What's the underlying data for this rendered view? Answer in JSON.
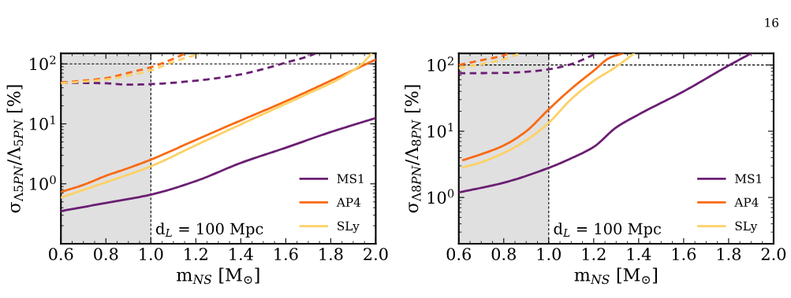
{
  "chart_data": [
    {
      "type": "line",
      "xlabel": "m$_{NS}$ [M$_{⊙}$]",
      "ylabel": "σ$_{Λ5PN}$/Λ$_{5PN}$ [%]",
      "log": "y",
      "xlim": [
        0.6,
        2.0
      ],
      "xticks": [
        {
          "value": 0.6,
          "label": "0.6"
        },
        {
          "value": 0.8,
          "label": "0.8"
        },
        {
          "value": 1.0,
          "label": "1.0"
        },
        {
          "value": 1.2,
          "label": "1.2"
        },
        {
          "value": 1.4,
          "label": "1.4"
        },
        {
          "value": 1.6,
          "label": "1.6"
        },
        {
          "value": 1.8,
          "label": "1.8"
        },
        {
          "value": 2.0,
          "label": "2.0"
        }
      ],
      "ylim": [
        0.1,
        150
      ],
      "yticks": [
        {
          "value": 1,
          "label": "10$^{0}$"
        },
        {
          "value": 10,
          "label": "10$^{1}$"
        },
        {
          "value": 100,
          "label": "10$^{2}$"
        }
      ],
      "legend": "bottom right",
      "grid": false,
      "series": [
        {
          "name": "MS1",
          "color": "#6b1f73",
          "x": [
            0.6,
            0.8,
            1.0,
            1.2,
            1.4,
            1.6,
            1.8,
            2.0
          ],
          "values": [
            0.35,
            0.48,
            0.66,
            1.11,
            2.23,
            4.0,
            7.3,
            12.5
          ]
        },
        {
          "name": "AP4",
          "color": "#f86a14",
          "x": [
            0.6,
            0.7,
            0.8,
            0.9,
            1.0,
            1.2,
            1.4,
            1.6,
            1.8,
            2.0
          ],
          "values": [
            0.73,
            0.96,
            1.36,
            1.83,
            2.53,
            5.4,
            11.4,
            23.8,
            52.5,
            118
          ]
        },
        {
          "name": "SLy",
          "color": "#fdd166",
          "x": [
            0.6,
            0.8,
            1.0,
            1.2,
            1.4,
            1.6,
            1.75,
            1.8,
            1.9,
            1.95,
            1.98
          ],
          "values": [
            0.59,
            1.06,
            1.96,
            4.4,
            9.8,
            21.6,
            39,
            47.5,
            78,
            110,
            148
          ]
        },
        {
          "color": "#6b1f73",
          "line_style": "dashed",
          "x": [
            0.6,
            0.8,
            0.9,
            1.0,
            1.2,
            1.4,
            1.5,
            1.6,
            1.7,
            1.73
          ],
          "values": [
            48.6,
            47.5,
            45,
            46,
            52.5,
            67,
            82,
            105,
            134,
            148
          ]
        },
        {
          "color": "#f86a14",
          "line_style": "dashed",
          "x": [
            0.6,
            0.7,
            0.8,
            0.9,
            1.0,
            1.1,
            1.15
          ],
          "values": [
            49,
            52.5,
            58,
            71,
            88,
            122,
            148
          ]
        },
        {
          "color": "#fdd166",
          "line_style": "dashed",
          "x": [
            0.6,
            0.8,
            0.9,
            1.0,
            1.1,
            1.2,
            1.22
          ],
          "values": [
            47.5,
            55,
            64,
            78,
            108,
            141,
            148
          ]
        }
      ],
      "bands": [
        {
          "axis": "x",
          "from": 0.6,
          "to": 1.0,
          "color": "#e0e0e0"
        }
      ],
      "ref_lines": [
        {
          "axis": "x",
          "value": 1.0,
          "line_style": "dashed"
        },
        {
          "axis": "y",
          "value": 100,
          "line_style": "dashed"
        }
      ],
      "annotations": [
        "d$_{L}$ = 100 Mpc"
      ]
    },
    {
      "type": "line",
      "xlabel": "m$_{NS}$ [M$_{⊙}$]",
      "ylabel": "σ$_{Λ8PN}$/Λ$_{8PN}$ [%]",
      "log": "y",
      "xlim": [
        0.6,
        2.0
      ],
      "xticks": [
        {
          "value": 0.6,
          "label": "0.6"
        },
        {
          "value": 0.8,
          "label": "0.8"
        },
        {
          "value": 1.0,
          "label": "1.0"
        },
        {
          "value": 1.2,
          "label": "1.2"
        },
        {
          "value": 1.4,
          "label": "1.4"
        },
        {
          "value": 1.6,
          "label": "1.6"
        },
        {
          "value": 1.8,
          "label": "1.8"
        },
        {
          "value": 2.0,
          "label": "2.0"
        }
      ],
      "ylim": [
        0.2,
        150
      ],
      "yticks": [
        {
          "value": 1,
          "label": "10$^{0}$"
        },
        {
          "value": 10,
          "label": "10$^{1}$"
        },
        {
          "value": 100,
          "label": "10$^{2}$"
        }
      ],
      "legend": "bottom right",
      "grid": false,
      "series": [
        {
          "name": "MS1",
          "color": "#6b1f73",
          "x": [
            0.6,
            0.8,
            1.0,
            1.1,
            1.2,
            1.3,
            1.4,
            1.6,
            1.8,
            1.9
          ],
          "values": [
            1.19,
            1.67,
            2.8,
            3.9,
            5.8,
            11.4,
            17.9,
            40,
            98,
            150
          ]
        },
        {
          "name": "AP4",
          "color": "#f86a14",
          "x": [
            0.62,
            0.7,
            0.8,
            0.9,
            1.0,
            1.1,
            1.2,
            1.27,
            1.33
          ],
          "values": [
            3.67,
            4.5,
            6.1,
            10,
            21.4,
            43.7,
            82,
            128,
            150
          ]
        },
        {
          "name": "SLy",
          "color": "#fdd166",
          "x": [
            0.62,
            0.7,
            0.8,
            0.9,
            1.0,
            1.1,
            1.2,
            1.3,
            1.38
          ],
          "values": [
            2.85,
            3.4,
            4.7,
            7.3,
            13.4,
            30.6,
            57.5,
            94,
            150
          ]
        },
        {
          "color": "#6b1f73",
          "line_style": "dashed",
          "x": [
            0.6,
            0.8,
            0.9,
            1.0,
            1.1,
            1.2
          ],
          "values": [
            75,
            76,
            79,
            86,
            103,
            143
          ]
        },
        {
          "color": "#f86a14",
          "line_style": "dashed",
          "x": [
            0.6,
            0.7,
            0.8,
            0.82
          ],
          "values": [
            100,
            118,
            140,
            150
          ]
        },
        {
          "color": "#fdd166",
          "line_style": "dashed",
          "x": [
            0.6,
            0.7,
            0.8,
            0.87
          ],
          "values": [
            90,
            103,
            122,
            150
          ]
        }
      ],
      "bands": [
        {
          "axis": "x",
          "from": 0.6,
          "to": 1.0,
          "color": "#e0e0e0"
        }
      ],
      "ref_lines": [
        {
          "axis": "x",
          "value": 1.0,
          "line_style": "dashed"
        },
        {
          "axis": "y",
          "value": 100,
          "line_style": "dashed"
        }
      ],
      "annotations": [
        "d$_{L}$ = 100 Mpc",
        "16"
      ]
    }
  ]
}
